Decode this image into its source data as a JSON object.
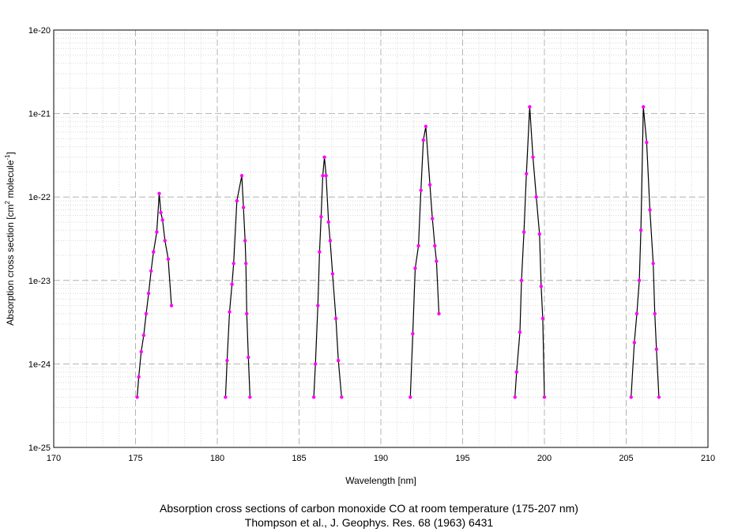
{
  "chart_data": {
    "type": "line",
    "title": "Absorption cross sections of carbon monoxide CO at room temperature (175-207 nm)",
    "subtitle": "Thompson et al., J. Geophys. Res. 68 (1963) 6431",
    "xlabel": "Wavelength [nm]",
    "ylabel": "Absorption cross section [cm",
    "ylabel_sup1": "2",
    "ylabel_mid": " molecule",
    "ylabel_sup2": "-1",
    "ylabel_end": "]",
    "xlim": [
      170,
      210
    ],
    "ylim": [
      1e-25,
      1e-20
    ],
    "yscale": "log",
    "grid": true,
    "x_ticks": [
      "170",
      "175",
      "180",
      "185",
      "190",
      "195",
      "200",
      "205",
      "210"
    ],
    "y_ticks": [
      "1e-20",
      "1e-21",
      "1e-22",
      "1e-23",
      "1e-24",
      "1e-25"
    ],
    "line_color": "#000000",
    "marker_color": "#ff00ff",
    "series": [
      {
        "x": [
          175.1,
          175.2,
          175.35,
          175.5,
          175.65,
          175.8,
          175.95,
          176.1,
          176.3,
          176.45,
          176.55,
          176.65,
          176.8,
          177.0,
          177.2
        ],
        "y": [
          4e-25,
          7e-25,
          1.4e-24,
          2.2e-24,
          4e-24,
          7e-24,
          1.3e-23,
          2.2e-23,
          3.8e-23,
          1.1e-22,
          6.5e-23,
          5.3e-23,
          3e-23,
          1.8e-23,
          5e-24
        ]
      },
      {
        "x": [
          180.5,
          180.6,
          180.75,
          180.9,
          181.0,
          181.2,
          181.5,
          181.6,
          181.7,
          181.75,
          181.8,
          181.9,
          182.0
        ],
        "y": [
          4e-25,
          1.1e-24,
          4.2e-24,
          9e-24,
          1.6e-23,
          9e-23,
          1.8e-22,
          7.5e-23,
          3e-23,
          1.6e-23,
          4e-24,
          1.2e-24,
          4e-25
        ]
      },
      {
        "x": [
          185.9,
          186.0,
          186.15,
          186.25,
          186.35,
          186.45,
          186.55,
          186.65,
          186.8,
          186.9,
          187.05,
          187.25,
          187.4,
          187.6
        ],
        "y": [
          4e-25,
          1e-24,
          5e-24,
          2.2e-23,
          5.8e-23,
          1.8e-22,
          3e-22,
          1.8e-22,
          5e-23,
          3e-23,
          1.2e-23,
          3.5e-24,
          1.1e-24,
          4e-25
        ]
      },
      {
        "x": [
          191.8,
          191.95,
          192.1,
          192.3,
          192.45,
          192.6,
          192.75,
          193.0,
          193.15,
          193.3,
          193.4,
          193.55
        ],
        "y": [
          4e-25,
          2.3e-24,
          1.4e-23,
          2.6e-23,
          1.2e-22,
          4.8e-22,
          7e-22,
          1.4e-22,
          5.5e-23,
          2.6e-23,
          1.7e-23,
          4e-24
        ]
      },
      {
        "x": [
          198.2,
          198.3,
          198.5,
          198.6,
          198.75,
          198.9,
          199.1,
          199.3,
          199.5,
          199.7,
          199.8,
          199.9,
          200.0
        ],
        "y": [
          4e-25,
          8e-25,
          2.4e-24,
          1e-23,
          3.8e-23,
          1.9e-22,
          1.2e-21,
          3e-22,
          1e-22,
          3.6e-23,
          8.5e-24,
          3.5e-24,
          4e-25
        ]
      },
      {
        "x": [
          205.3,
          205.5,
          205.65,
          205.8,
          205.9,
          206.05,
          206.25,
          206.45,
          206.65,
          206.75,
          206.85,
          207.0
        ],
        "y": [
          4e-25,
          1.8e-24,
          4e-24,
          1e-23,
          4e-23,
          1.2e-21,
          4.5e-22,
          7e-23,
          1.6e-23,
          4e-24,
          1.5e-24,
          4e-25
        ]
      }
    ]
  }
}
